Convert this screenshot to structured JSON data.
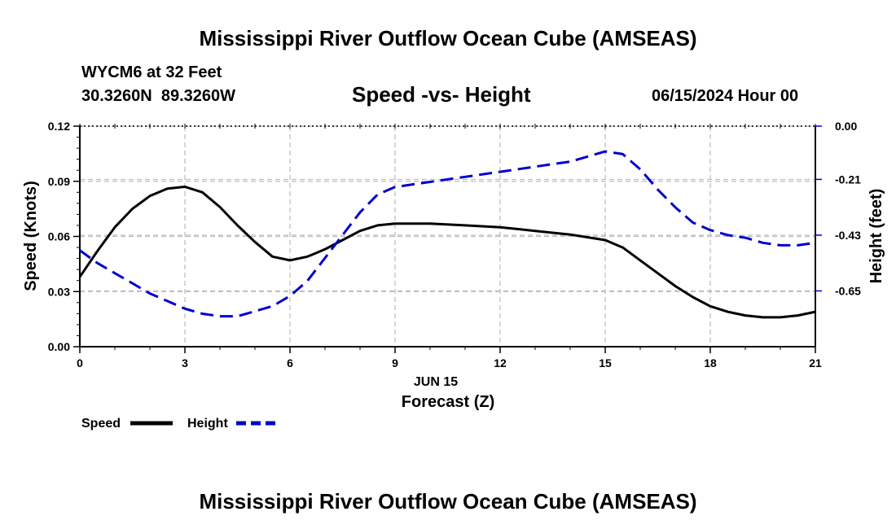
{
  "page": {
    "title": "Mississippi River Outflow Ocean Cube (AMSEAS)",
    "footer_title": "Mississippi River Outflow Ocean Cube (AMSEAS)",
    "station": "WYCM6 at 32 Feet",
    "coords": "30.3260N  89.3260W",
    "subtitle": "Speed -vs- Height",
    "datetime": "06/15/2024 Hour 00"
  },
  "chart_data": {
    "type": "line",
    "title": "Speed -vs- Height",
    "xlabel": "Forecast (Z)",
    "xdate_label": "JUN 15",
    "ylabel": "Speed (Knots)",
    "y2label": "Height (feet)",
    "xlim": [
      0,
      21
    ],
    "ylim": [
      0,
      0.12
    ],
    "y2lim": [
      -0.87,
      0.0
    ],
    "grid": true,
    "xticks": [
      0,
      3,
      6,
      9,
      12,
      15,
      18,
      21
    ],
    "xtick_labels": [
      "0",
      "3",
      "6",
      "9",
      "12",
      "15",
      "18",
      "21"
    ],
    "yticks": [
      0,
      0.03,
      0.06,
      0.09,
      0.12
    ],
    "ytick_labels": [
      "0.00",
      "0.03",
      "0.06",
      "0.09",
      "0.12"
    ],
    "y2ticks": [
      0.0,
      -0.21,
      -0.43,
      -0.65
    ],
    "y2tick_labels": [
      "0.00",
      "-0.21",
      "-0.43",
      "-0.65"
    ],
    "legend_position": "bottom-left",
    "series": [
      {
        "name": "Speed",
        "axis": "left",
        "color": "#000000",
        "dash": "solid",
        "x": [
          0,
          0.5,
          1,
          1.5,
          2,
          2.5,
          3,
          3.5,
          4,
          4.5,
          5,
          5.5,
          6,
          6.5,
          7,
          7.5,
          8,
          8.5,
          9,
          10,
          11,
          12,
          13,
          14,
          15,
          15.5,
          16,
          16.5,
          17,
          17.5,
          18,
          18.5,
          19,
          19.5,
          20,
          20.5,
          21
        ],
        "values": [
          0.038,
          0.052,
          0.065,
          0.075,
          0.082,
          0.086,
          0.087,
          0.084,
          0.076,
          0.066,
          0.057,
          0.049,
          0.047,
          0.049,
          0.053,
          0.058,
          0.063,
          0.066,
          0.067,
          0.067,
          0.066,
          0.065,
          0.063,
          0.061,
          0.058,
          0.054,
          0.047,
          0.04,
          0.033,
          0.027,
          0.022,
          0.019,
          0.017,
          0.016,
          0.016,
          0.017,
          0.019
        ]
      },
      {
        "name": "Height",
        "axis": "right",
        "color": "#0000cc",
        "dash": "dashed",
        "x": [
          0,
          0.5,
          1,
          1.5,
          2,
          2.5,
          3,
          3.5,
          4,
          4.5,
          5,
          5.5,
          6,
          6.5,
          7,
          7.5,
          8,
          8.5,
          9,
          10,
          11,
          12,
          13,
          14,
          15,
          15.5,
          16,
          16.5,
          17,
          17.5,
          18,
          18.5,
          19,
          19.5,
          20,
          20.5,
          21
        ],
        "values": [
          -0.49,
          -0.54,
          -0.58,
          -0.62,
          -0.66,
          -0.69,
          -0.72,
          -0.74,
          -0.75,
          -0.75,
          -0.73,
          -0.71,
          -0.67,
          -0.61,
          -0.52,
          -0.43,
          -0.34,
          -0.27,
          -0.24,
          -0.22,
          -0.2,
          -0.18,
          -0.16,
          -0.14,
          -0.1,
          -0.11,
          -0.17,
          -0.25,
          -0.32,
          -0.38,
          -0.41,
          -0.43,
          -0.44,
          -0.46,
          -0.47,
          -0.47,
          -0.46
        ]
      }
    ]
  }
}
